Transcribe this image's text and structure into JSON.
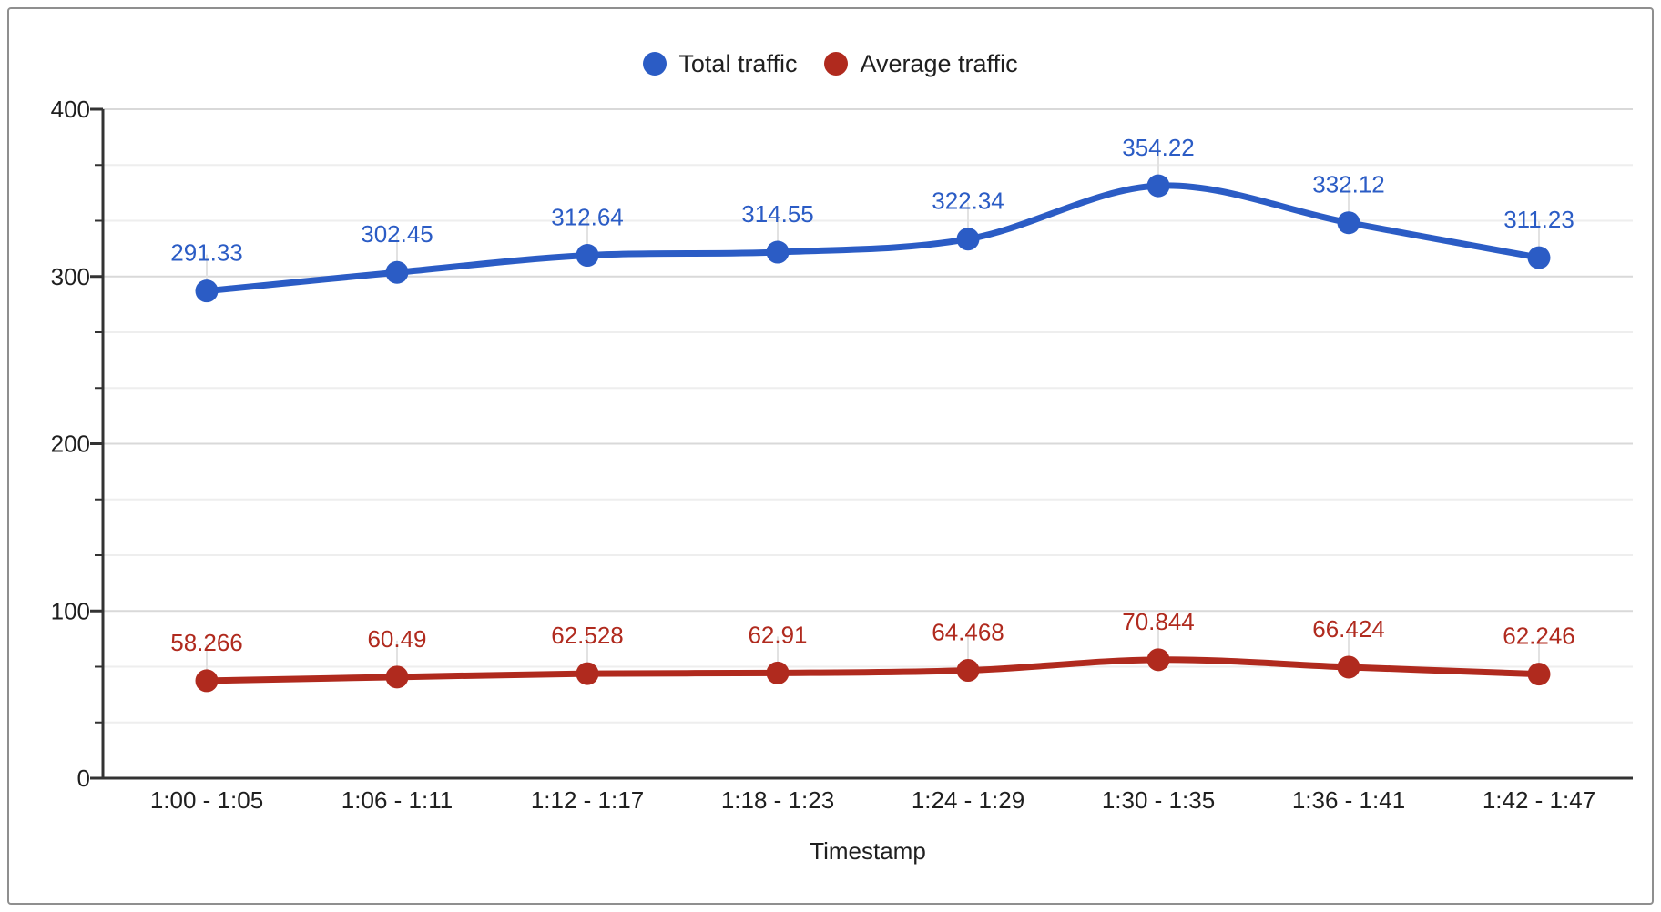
{
  "legend": {
    "items": [
      {
        "label": "Total traffic",
        "color": "#2B5CC5"
      },
      {
        "label": "Average traffic",
        "color": "#B02A1E"
      }
    ]
  },
  "chart_data": {
    "type": "line",
    "smooth": true,
    "title": "",
    "xlabel": "Timestamp",
    "ylabel": "",
    "legend_position": "top",
    "grid": "on",
    "ylim": [
      0,
      400
    ],
    "y_ticks": [
      "0",
      "100",
      "200",
      "300",
      "400"
    ],
    "y_tick_values": [
      0,
      100,
      200,
      300,
      400
    ],
    "y_minor_divisions": 3,
    "categories": [
      "1:00 - 1:05",
      "1:06 - 1:11",
      "1:12 - 1:17",
      "1:18 - 1:23",
      "1:24 - 1:29",
      "1:30 - 1:35",
      "1:36 - 1:41",
      "1:42 - 1:47"
    ],
    "series": [
      {
        "name": "Total traffic",
        "color": "#2B5CC5",
        "values": [
          291.33,
          302.45,
          312.64,
          314.55,
          322.34,
          354.22,
          332.12,
          311.23
        ],
        "point_labels": [
          "291.33",
          "302.45",
          "312.64",
          "314.55",
          "322.34",
          "354.22",
          "332.12",
          "311.23"
        ]
      },
      {
        "name": "Average traffic",
        "color": "#B02A1E",
        "values": [
          58.266,
          60.49,
          62.528,
          62.91,
          64.468,
          70.844,
          66.424,
          62.246
        ],
        "point_labels": [
          "58.266",
          "60.49",
          "62.528",
          "62.91",
          "64.468",
          "70.844",
          "66.424",
          "62.246"
        ]
      }
    ]
  },
  "colors": {
    "axis": "#333333",
    "grid_major": "#d9d9d9",
    "grid_minor": "#eeeeee",
    "leader_line": "#e2e2e2",
    "tick_label": "#1f1f1f",
    "frame_border": "#8f8f8f"
  }
}
